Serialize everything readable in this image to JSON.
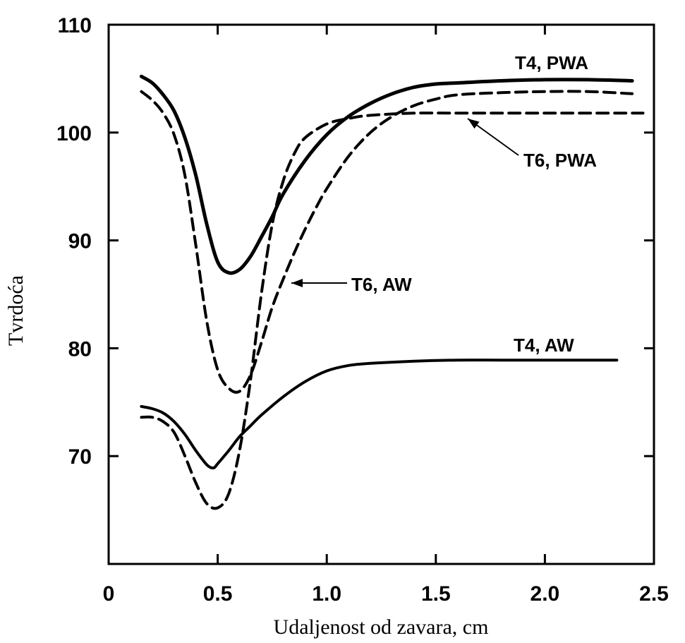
{
  "chart_data": {
    "type": "line",
    "title": "",
    "xlabel": "Udaljenost od zavara, cm",
    "ylabel": "Tvrdoća",
    "xlim": [
      0,
      2.5
    ],
    "ylim": [
      60,
      110
    ],
    "xticks": [
      {
        "value": 0,
        "label": "0"
      },
      {
        "value": 0.5,
        "label": "0.5"
      },
      {
        "value": 1.0,
        "label": "1.0"
      },
      {
        "value": 1.5,
        "label": "1.5"
      },
      {
        "value": 2.0,
        "label": "2.0"
      },
      {
        "value": 2.5,
        "label": "2.5"
      }
    ],
    "yticks": [
      {
        "value": 70,
        "label": "70"
      },
      {
        "value": 80,
        "label": "80"
      },
      {
        "value": 90,
        "label": "90"
      },
      {
        "value": 100,
        "label": "100"
      },
      {
        "value": 110,
        "label": "110"
      }
    ],
    "grid": false,
    "series": [
      {
        "name": "T4, PWA",
        "style": "solid",
        "x": [
          0.15,
          0.2,
          0.25,
          0.3,
          0.35,
          0.4,
          0.45,
          0.5,
          0.55,
          0.6,
          0.65,
          0.7,
          0.75,
          0.8,
          0.9,
          1.0,
          1.1,
          1.2,
          1.3,
          1.4,
          1.5,
          1.6,
          1.8,
          2.0,
          2.2,
          2.4
        ],
        "y": [
          105.2,
          104.6,
          103.5,
          102.0,
          99.5,
          96.0,
          91.5,
          88.0,
          87.0,
          87.3,
          88.5,
          90.3,
          92.2,
          94.3,
          97.4,
          99.8,
          101.5,
          102.7,
          103.6,
          104.2,
          104.5,
          104.6,
          104.8,
          104.9,
          104.9,
          104.8
        ]
      },
      {
        "name": "T4, PWA",
        "style": "dashed",
        "x": [
          0.15,
          0.2,
          0.25,
          0.3,
          0.35,
          0.4,
          0.45,
          0.5,
          0.55,
          0.6,
          0.65,
          0.7,
          0.75,
          0.8,
          0.85,
          0.9,
          0.95,
          1.0,
          1.1,
          1.2,
          1.3,
          1.4,
          1.5,
          1.6,
          1.8,
          2.0,
          2.2,
          2.4
        ],
        "y": [
          103.8,
          103.0,
          101.8,
          99.8,
          96.0,
          89.5,
          82.5,
          78.0,
          76.3,
          76.0,
          77.5,
          80.5,
          83.8,
          86.4,
          88.8,
          91.0,
          93.0,
          94.8,
          97.8,
          100.0,
          101.5,
          102.5,
          103.1,
          103.5,
          103.7,
          103.8,
          103.8,
          103.6
        ]
      },
      {
        "name": "T6, PWA",
        "style": "dashed",
        "x": [
          0.15,
          0.2,
          0.25,
          0.3,
          0.35,
          0.4,
          0.45,
          0.5,
          0.55,
          0.6,
          0.65,
          0.7,
          0.75,
          0.8,
          0.85,
          0.9,
          1.0,
          1.1,
          1.2,
          1.4,
          1.6,
          1.8,
          2.0,
          2.2,
          2.45
        ],
        "y": [
          73.6,
          73.6,
          73.2,
          72.2,
          70.0,
          67.5,
          65.6,
          65.2,
          66.5,
          70.5,
          77.0,
          85.0,
          91.5,
          95.5,
          98.0,
          99.5,
          100.8,
          101.3,
          101.6,
          101.8,
          101.8,
          101.8,
          101.8,
          101.8,
          101.8
        ]
      },
      {
        "name": "T4, AW",
        "style": "solid",
        "x": [
          0.15,
          0.2,
          0.25,
          0.3,
          0.35,
          0.4,
          0.45,
          0.48,
          0.5,
          0.55,
          0.6,
          0.65,
          0.7,
          0.8,
          0.9,
          1.0,
          1.1,
          1.2,
          1.4,
          1.6,
          1.8,
          2.0,
          2.33
        ],
        "y": [
          74.6,
          74.4,
          74.0,
          73.2,
          72.0,
          70.5,
          69.2,
          68.9,
          69.3,
          70.5,
          71.8,
          72.8,
          73.8,
          75.5,
          76.9,
          77.9,
          78.4,
          78.6,
          78.8,
          78.9,
          78.9,
          78.9,
          78.9
        ]
      }
    ],
    "annotations": [
      {
        "text": "T4, PWA"
      },
      {
        "text": "T6, PWA"
      },
      {
        "text": "T6, AW"
      },
      {
        "text": "T4, AW"
      }
    ]
  }
}
